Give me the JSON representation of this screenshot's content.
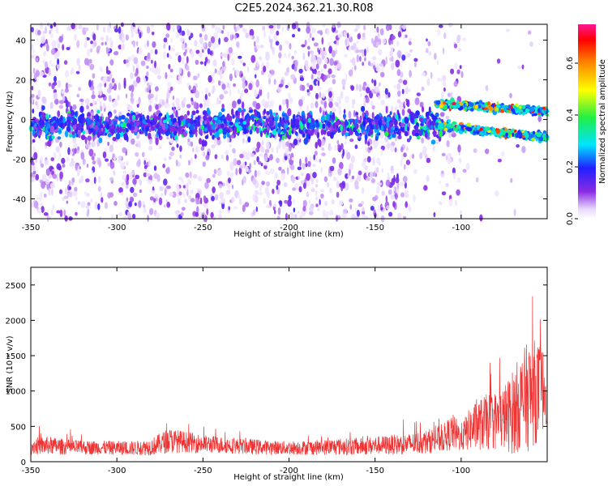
{
  "title": "C2E5.2024.362.21.30.R08",
  "chart_data": [
    {
      "type": "heatmap",
      "xlabel": "Height of straight line (km)",
      "ylabel": "Frequency (Hz)",
      "xlim": [
        -350,
        -50
      ],
      "ylim": [
        -50,
        48
      ],
      "xticks": [
        -350,
        -300,
        -250,
        -200,
        -150,
        -100
      ],
      "yticks": [
        -40,
        -20,
        0,
        20,
        40
      ],
      "colorbar": {
        "label": "Normalized spectral amplitude",
        "range": [
          0,
          0.75
        ],
        "ticks": [
          0,
          0.2,
          0.4,
          0.6
        ],
        "tick_labels": [
          "0.0",
          "0.2",
          "0.4",
          "0.6"
        ],
        "colormap": "rainbow"
      },
      "features": [
        {
          "name": "main band",
          "x_range": [
            -350,
            -110
          ],
          "freq_center": -3,
          "freq_halfwidth": 5
        },
        {
          "name": "upper branch",
          "x_range": [
            -115,
            -50
          ],
          "freq_start": 8,
          "freq_end": 4
        },
        {
          "name": "lower branch",
          "x_range": [
            -115,
            -50
          ],
          "freq_start": -3,
          "freq_end": -9
        }
      ]
    },
    {
      "type": "line",
      "xlabel": "Height of straight line (km)",
      "ylabel": "SNR (10 * v/v)",
      "xlim": [
        -350,
        -50
      ],
      "ylim": [
        0,
        2750
      ],
      "xticks": [
        -350,
        -300,
        -250,
        -200,
        -150,
        -100
      ],
      "yticks": [
        0,
        500,
        1000,
        1500,
        2000,
        2500
      ],
      "series": [
        {
          "name": "SNR",
          "color": "#ee3333",
          "x": [
            -350,
            -340,
            -330,
            -320,
            -310,
            -300,
            -290,
            -280,
            -270,
            -260,
            -250,
            -240,
            -230,
            -220,
            -210,
            -200,
            -190,
            -180,
            -170,
            -160,
            -150,
            -140,
            -130,
            -120,
            -110,
            -105,
            -100,
            -95,
            -90,
            -85,
            -80,
            -75,
            -70,
            -65,
            -60,
            -55,
            -50
          ],
          "mean": [
            220,
            230,
            210,
            200,
            200,
            195,
            190,
            210,
            300,
            280,
            250,
            240,
            220,
            210,
            200,
            195,
            200,
            205,
            215,
            210,
            230,
            240,
            250,
            280,
            340,
            420,
            340,
            460,
            520,
            560,
            580,
            620,
            700,
            850,
            950,
            1000,
            1050
          ],
          "spread": [
            120,
            130,
            110,
            100,
            100,
            100,
            100,
            120,
            180,
            150,
            130,
            120,
            110,
            110,
            100,
            100,
            100,
            110,
            120,
            120,
            130,
            140,
            150,
            170,
            200,
            260,
            200,
            300,
            360,
            400,
            420,
            460,
            600,
            700,
            800,
            700,
            500
          ]
        }
      ]
    }
  ]
}
